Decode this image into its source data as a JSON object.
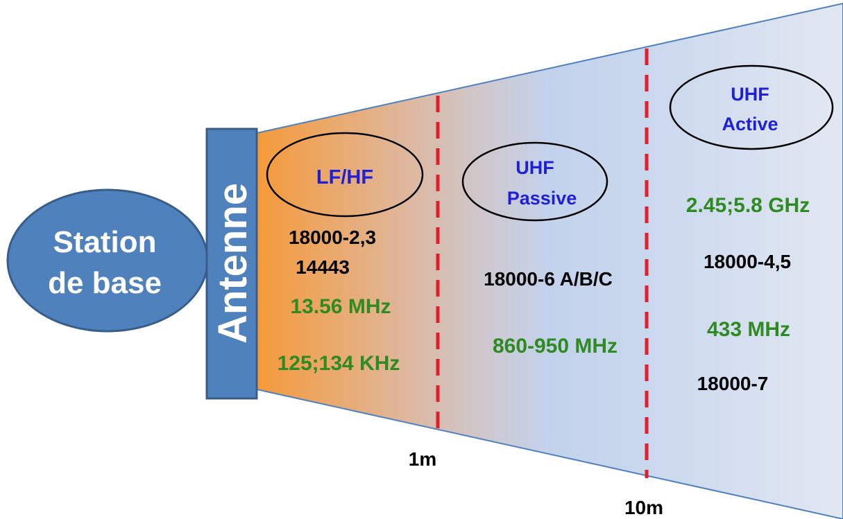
{
  "station": {
    "line1": "Station",
    "line2": "de base"
  },
  "antenna": {
    "label": "Antenne"
  },
  "zones": {
    "lfhf": {
      "title": "LF/HF",
      "standard_1": "18000-2,3",
      "standard_2": "14443",
      "freq_1": "13.56 MHz",
      "freq_2": "125;134 KHz"
    },
    "uhf_passive": {
      "title_1": "UHF",
      "title_2": "Passive",
      "standard": "18000-6 A/B/C",
      "freq": "860-950 MHz"
    },
    "uhf_active": {
      "title_1": "UHF",
      "title_2": "Active",
      "freq_1": "2.45;5.8 GHz",
      "standard_1": "18000-4,5",
      "freq_2": "433 MHz",
      "standard_2": "18000-7"
    }
  },
  "distances": {
    "d1": "1m",
    "d2": "10m"
  },
  "colors": {
    "antenna_fill": "#4f81bd",
    "antenna_stroke": "#385d8a",
    "zone_title": "#1f1fd8",
    "frequency": "#2e8b22",
    "standard": "#000000",
    "divider": "#e0202a",
    "near_field": "#f59a3a",
    "far_field": "#dfe6f2"
  }
}
